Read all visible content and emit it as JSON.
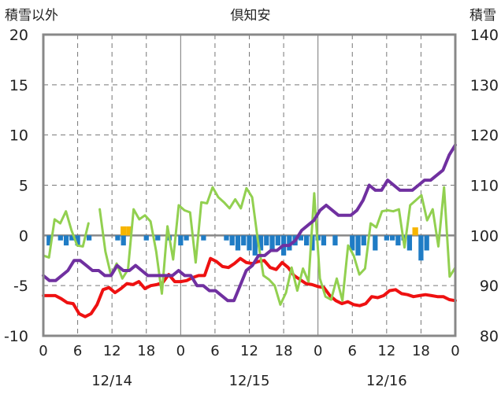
{
  "chart_data": {
    "type": "line",
    "title": "倶知安",
    "ylabel_left": "積雪以外",
    "ylabel_right": "積雪",
    "ylim_left": [
      -10,
      20
    ],
    "yticks_left": [
      -10,
      -5,
      0,
      5,
      10,
      15,
      20
    ],
    "ylim_right": [
      80,
      140
    ],
    "yticks_right": [
      80,
      90,
      100,
      110,
      120,
      130,
      140
    ],
    "x_tick_labels": [
      "0",
      "6",
      "12",
      "18",
      "0",
      "6",
      "12",
      "18",
      "0",
      "6",
      "12",
      "18",
      "0"
    ],
    "day_labels": [
      "12/14",
      "12/15",
      "12/16"
    ],
    "grid": true,
    "colors": {
      "temperature": "#ee1111",
      "dewpoint_or_wind": "#92d050",
      "snow_depth": "#7030a0",
      "snow_change": "#1f7cc5",
      "snowfall": "#f7b500",
      "axis": "#888888",
      "grid": "#777777"
    },
    "series": [
      {
        "key": "red",
        "axis": "left",
        "values": [
          -6.0,
          -6.0,
          -6.0,
          -6.3,
          -6.7,
          -6.8,
          -7.8,
          -8.1,
          -7.8,
          -6.9,
          -5.4,
          -5.2,
          -5.7,
          -5.3,
          -4.8,
          -4.9,
          -4.6,
          -5.3,
          -5.0,
          -4.9,
          -4.7,
          -3.9,
          -4.6,
          -4.6,
          -4.5,
          -4.2,
          -4.0,
          -4.0,
          -2.3,
          -2.6,
          -3.1,
          -3.2,
          -2.8,
          -2.3,
          -2.7,
          -2.8,
          -2.6,
          -2.5,
          -3.2,
          -3.4,
          -2.7,
          -3.2,
          -4.0,
          -4.4,
          -4.8,
          -4.9,
          -5.1,
          -5.2,
          -6.0,
          -6.5,
          -6.8,
          -6.6,
          -6.9,
          -7.0,
          -6.8,
          -6.1,
          -6.2,
          -6.0,
          -5.5,
          -5.4,
          -5.8,
          -5.9,
          -6.1,
          -6.0,
          -5.9,
          -6.0,
          -6.1,
          -6.1,
          -6.4,
          -6.5
        ]
      },
      {
        "key": "green",
        "axis": "left",
        "values": [
          -2.0,
          -2.2,
          1.6,
          1.2,
          2.4,
          0.5,
          -1.0,
          -1.1,
          1.2,
          null,
          2.6,
          -1.6,
          -4.0,
          -2.8,
          -4.3,
          -3.4,
          2.6,
          1.6,
          2.0,
          1.4,
          -1.6,
          -5.8,
          0.9,
          -2.4,
          3.0,
          2.5,
          2.3,
          -2.7,
          3.3,
          3.2,
          4.8,
          3.8,
          3.3,
          2.7,
          3.6,
          2.7,
          4.7,
          3.8,
          -0.4,
          -4.0,
          -4.4,
          -5.0,
          -6.9,
          -5.7,
          -3.2,
          -5.5,
          -3.3,
          -4.6,
          4.2,
          -4.3,
          -6.1,
          -6.4,
          -4.3,
          -6.5,
          -1.0,
          -2.0,
          -3.9,
          -3.3,
          1.2,
          0.8,
          2.4,
          2.5,
          2.4,
          2.6,
          -1.2,
          3.0,
          3.5,
          4.0,
          1.5,
          2.6,
          -1.1,
          4.8,
          -4.1,
          -3.2
        ]
      },
      {
        "key": "purple",
        "axis": "right",
        "values": [
          92,
          91,
          91,
          92,
          93,
          95,
          95,
          94,
          93,
          93,
          92,
          92,
          94,
          93,
          93,
          94,
          93,
          92,
          92,
          92,
          92,
          92,
          93,
          92,
          92,
          90,
          90,
          89,
          89,
          88,
          87,
          87,
          90,
          93,
          94,
          96,
          96,
          97,
          97,
          98,
          98,
          99,
          101,
          102,
          103,
          105,
          106,
          105,
          104,
          104,
          104,
          105,
          107,
          110,
          109,
          109,
          111,
          110,
          109,
          109,
          109,
          110,
          111,
          111,
          112,
          113,
          116,
          118
        ]
      }
    ],
    "bars": [
      {
        "key": "blue",
        "axis": "left",
        "values": [
          -1,
          0,
          -0.5,
          -1,
          -0.5,
          -1,
          0,
          -0.5,
          0,
          0,
          0,
          0,
          -0.5,
          -1,
          0,
          0,
          0,
          -0.5,
          0,
          -0.5,
          0,
          -0.5,
          0,
          -1,
          -0.5,
          0,
          0,
          -0.5,
          0,
          0,
          0,
          -0.5,
          -1,
          -1.5,
          -1,
          -1.5,
          -2,
          -1.5,
          -1,
          -1.5,
          -1,
          -2,
          -1.5,
          -1,
          -0.5,
          -1,
          -1.5,
          -0.5,
          -1,
          0,
          -1,
          0,
          0,
          -1.5,
          -2,
          -1,
          0,
          -1.5,
          0,
          -0.5,
          -0.5,
          -1,
          -0.5,
          -1.5,
          0,
          -2.5,
          -1.5
        ]
      },
      {
        "key": "orange",
        "axis": "left",
        "values": [
          {
            "hour": 14,
            "value": 0.9
          },
          {
            "hour": 15,
            "value": 0.9
          },
          {
            "hour": 65,
            "value": 0.8
          }
        ]
      }
    ]
  }
}
